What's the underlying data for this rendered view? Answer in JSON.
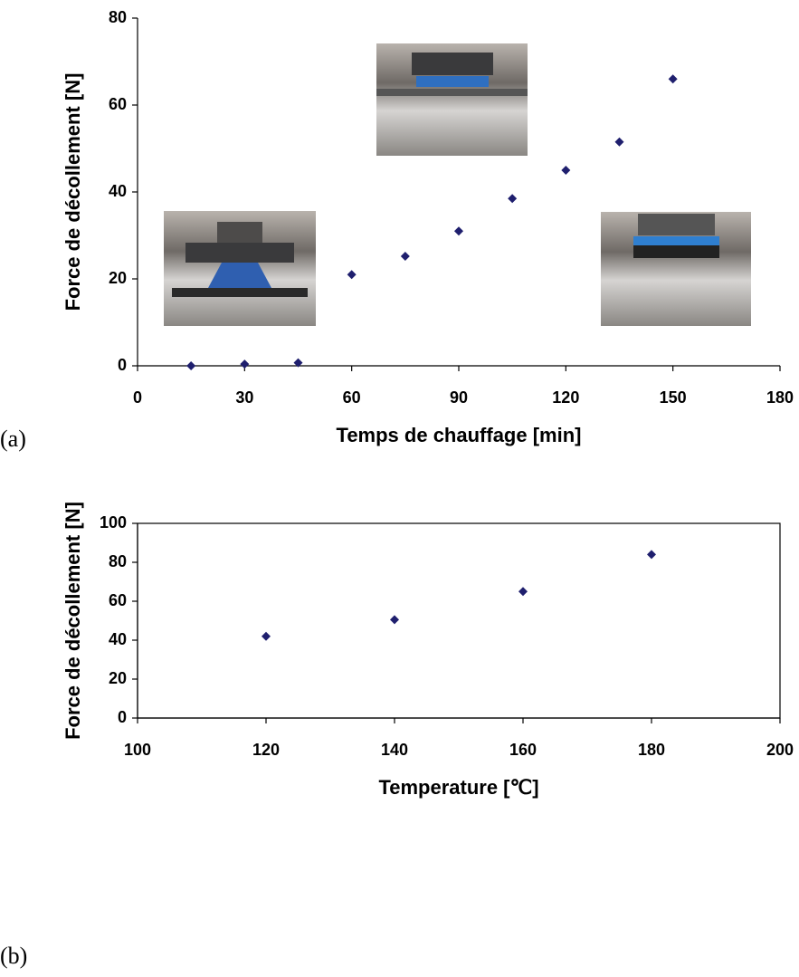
{
  "chart_data": [
    {
      "type": "scatter",
      "panel_label": "(a)",
      "x_label": "Temps de chauffage [min]",
      "y_label": "Force de décollement [N]",
      "x": [
        15,
        30,
        45,
        60,
        75,
        90,
        105,
        120,
        135,
        150
      ],
      "values": [
        0,
        0.4,
        0.7,
        21,
        25.2,
        31,
        38.5,
        45,
        51.5,
        66
      ],
      "color": "#1f1f6e",
      "xlim": [
        0,
        180
      ],
      "xticks": [
        0,
        30,
        60,
        90,
        120,
        150,
        180
      ],
      "ylim": [
        0,
        80
      ],
      "yticks": [
        0,
        20,
        40,
        60,
        80
      ],
      "box": false
    },
    {
      "type": "scatter",
      "panel_label": "(b)",
      "x_label": "Temperature [℃]",
      "y_label": "Force de décollement [N]",
      "x": [
        120,
        140,
        160,
        180
      ],
      "values": [
        42,
        50.5,
        65,
        84
      ],
      "color": "#1f1f6e",
      "xlim": [
        100,
        200
      ],
      "xticks": [
        100,
        120,
        140,
        160,
        180,
        200
      ],
      "ylim": [
        0,
        100
      ],
      "yticks": [
        0,
        20,
        40,
        60,
        80,
        100
      ],
      "box": true
    }
  ]
}
